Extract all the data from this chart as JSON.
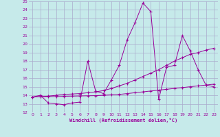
{
  "background_color": "#c6eaea",
  "grid_color": "#aaaacc",
  "line_color": "#990099",
  "xlabel": "Windchill (Refroidissement éolien,°C)",
  "xlim": [
    -0.5,
    23.5
  ],
  "ylim": [
    12,
    25
  ],
  "yticks": [
    12,
    13,
    14,
    15,
    16,
    17,
    18,
    19,
    20,
    21,
    22,
    23,
    24,
    25
  ],
  "xticks": [
    0,
    1,
    2,
    3,
    4,
    5,
    6,
    7,
    8,
    9,
    10,
    11,
    12,
    13,
    14,
    15,
    16,
    17,
    18,
    19,
    20,
    21,
    22,
    23
  ],
  "series1_x": [
    0,
    1,
    2,
    3,
    4,
    5,
    6,
    7,
    8,
    9,
    10,
    11,
    12,
    13,
    14,
    15,
    16,
    17,
    18,
    19,
    20,
    21,
    22,
    23
  ],
  "series1_y": [
    13.8,
    14.0,
    13.1,
    13.0,
    12.9,
    13.1,
    13.2,
    18.0,
    14.5,
    14.2,
    15.8,
    17.5,
    20.5,
    22.5,
    24.8,
    23.8,
    13.5,
    17.3,
    17.5,
    21.0,
    19.2,
    17.0,
    15.2,
    15.0
  ],
  "series2_x": [
    0,
    1,
    2,
    3,
    4,
    5,
    6,
    7,
    8,
    9,
    10,
    11,
    12,
    13,
    14,
    15,
    16,
    17,
    18,
    19,
    20,
    21,
    22,
    23
  ],
  "series2_y": [
    13.8,
    13.85,
    13.9,
    14.0,
    14.1,
    14.15,
    14.2,
    14.3,
    14.4,
    14.55,
    14.8,
    15.1,
    15.4,
    15.8,
    16.2,
    16.6,
    17.0,
    17.5,
    18.0,
    18.4,
    18.8,
    19.0,
    19.3,
    19.5
  ],
  "series3_x": [
    0,
    1,
    2,
    3,
    4,
    5,
    6,
    7,
    8,
    9,
    10,
    11,
    12,
    13,
    14,
    15,
    16,
    17,
    18,
    19,
    20,
    21,
    22,
    23
  ],
  "series3_y": [
    13.8,
    13.82,
    13.84,
    13.86,
    13.88,
    13.9,
    13.92,
    13.94,
    13.96,
    14.0,
    14.05,
    14.1,
    14.2,
    14.3,
    14.4,
    14.5,
    14.6,
    14.7,
    14.8,
    14.9,
    15.0,
    15.1,
    15.2,
    15.3
  ]
}
